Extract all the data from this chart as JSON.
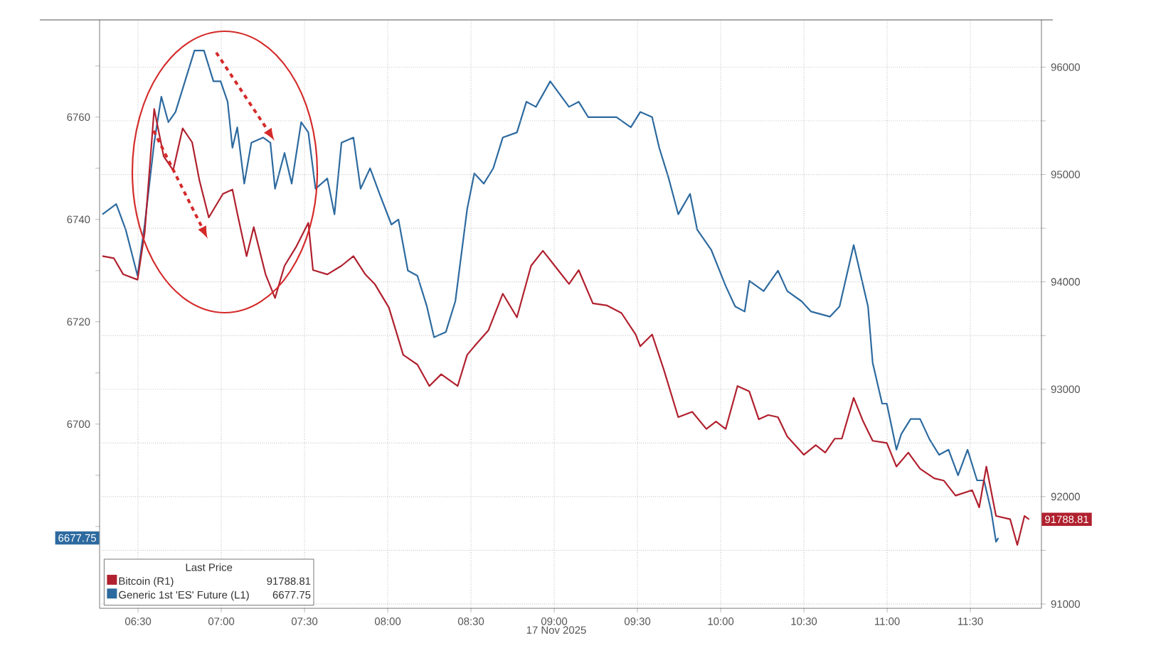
{
  "chart_data": {
    "type": "line",
    "xlabel": "17 Nov 2025",
    "legend_title": "Last Price",
    "annotations": [
      "91788.81",
      "6677.75",
      "6677.75"
    ],
    "xlim": [
      6.269,
      11.927
    ],
    "xticks": [
      {
        "value": 6.5,
        "label": "06:30"
      },
      {
        "value": 7,
        "label": "07:00"
      },
      {
        "value": 7.5,
        "label": "07:30"
      },
      {
        "value": 8,
        "label": "08:00"
      },
      {
        "value": 8.5,
        "label": "08:30"
      },
      {
        "value": 9,
        "label": "09:00"
      },
      {
        "value": 9.5,
        "label": "09:30"
      },
      {
        "value": 10,
        "label": "10:00"
      },
      {
        "value": 10.5,
        "label": "10:30"
      },
      {
        "value": 11,
        "label": "11:00"
      },
      {
        "value": 11.5,
        "label": "11:30"
      }
    ],
    "ylim": [
      6664,
      6779
    ],
    "yticks": [
      {
        "value": 6680,
        "label": null
      },
      {
        "value": 6690,
        "label": null
      },
      6700,
      {
        "value": 6710,
        "label": null
      },
      6720,
      {
        "value": 6730,
        "label": null
      },
      6740,
      {
        "value": 6750,
        "label": null
      },
      6760,
      {
        "value": 6770,
        "label": null
      }
    ],
    "y2lim": [
      90960,
      96440
    ],
    "y2ticks": [
      91000,
      {
        "value": 91500,
        "label": null
      },
      92000,
      {
        "value": 92500,
        "label": null
      },
      93000,
      {
        "value": 93500,
        "label": null
      },
      94000,
      {
        "value": 94500,
        "label": null
      },
      95000,
      {
        "value": 95500,
        "label": null
      },
      96000
    ],
    "grid": true,
    "legend": "bottom left",
    "marker": "none",
    "line_style": "solid",
    "series": [
      {
        "name": "Bitcoin (R1)",
        "color": "#b0202e",
        "axis": "y2",
        "x": [
          6.286,
          6.355,
          6.411,
          6.497,
          6.54,
          6.597,
          6.654,
          6.711,
          6.768,
          6.825,
          6.868,
          6.925,
          7.01,
          7.067,
          7.096,
          7.152,
          7.195,
          7.266,
          7.323,
          7.38,
          7.451,
          7.523,
          7.551,
          7.637,
          7.722,
          7.794,
          7.865,
          7.922,
          8.007,
          8.093,
          8.178,
          8.25,
          8.321,
          8.42,
          8.477,
          8.52,
          8.605,
          8.691,
          8.776,
          8.861,
          8.932,
          9.003,
          9.089,
          9.147,
          9.232,
          9.318,
          9.404,
          9.489,
          9.517,
          9.588,
          9.659,
          9.745,
          9.829,
          9.914,
          9.972,
          10.03,
          10.101,
          10.172,
          10.229,
          10.286,
          10.344,
          10.4,
          10.5,
          10.571,
          10.628,
          10.685,
          10.728,
          10.799,
          10.856,
          10.913,
          10.998,
          11.056,
          11.127,
          11.198,
          11.283,
          11.34,
          11.411,
          11.511,
          11.553,
          11.596,
          11.654,
          11.739,
          11.782,
          11.825,
          11.853
        ],
        "values": [
          94240,
          94220,
          94070,
          94020,
          94460,
          95610,
          95170,
          95040,
          95430,
          95300,
          94950,
          94600,
          94820,
          94860,
          94640,
          94240,
          94510,
          94070,
          93850,
          94150,
          94330,
          94550,
          94110,
          94070,
          94150,
          94240,
          94070,
          93980,
          93760,
          93320,
          93230,
          93030,
          93140,
          93030,
          93320,
          93400,
          93550,
          93890,
          93670,
          94150,
          94290,
          94150,
          93980,
          94110,
          93800,
          93780,
          93710,
          93510,
          93400,
          93510,
          93180,
          92740,
          92790,
          92630,
          92700,
          92630,
          93030,
          92980,
          92720,
          92760,
          92740,
          92560,
          92390,
          92480,
          92410,
          92540,
          92540,
          92920,
          92700,
          92520,
          92500,
          92280,
          92410,
          92260,
          92170,
          92150,
          92010,
          92060,
          91900,
          92280,
          91820,
          91790,
          91550,
          91820,
          91788.81
        ],
        "value_labels": [
          null,
          null,
          null,
          null,
          null,
          null,
          null,
          null,
          null,
          null,
          null,
          null,
          null,
          null,
          null,
          null,
          null,
          null,
          null,
          null,
          null,
          null,
          null,
          null,
          null,
          null,
          null,
          null,
          null,
          null,
          null,
          null,
          null,
          null,
          null,
          null,
          null,
          null,
          null,
          null,
          null,
          null,
          null,
          null,
          null,
          null,
          null,
          null,
          null,
          null,
          null,
          null,
          null,
          null,
          null,
          null,
          null,
          null,
          null,
          null,
          null,
          null,
          null,
          null,
          null,
          null,
          null,
          null,
          null,
          null,
          null,
          null,
          null,
          null,
          null,
          null,
          null,
          null,
          null,
          null,
          null,
          null,
          null,
          null,
          "91788.81"
        ]
      },
      {
        "name": "Generic 1st 'ES' Future (L1)",
        "color": "#2d6a9f",
        "axis": "y",
        "x": [
          6.286,
          6.369,
          6.426,
          6.497,
          6.54,
          6.597,
          6.64,
          6.682,
          6.725,
          6.782,
          6.839,
          6.896,
          6.953,
          6.996,
          7.038,
          7.067,
          7.096,
          7.138,
          7.181,
          7.252,
          7.295,
          7.323,
          7.38,
          7.423,
          7.48,
          7.523,
          7.566,
          7.637,
          7.68,
          7.722,
          7.794,
          7.837,
          7.894,
          7.951,
          8.022,
          8.064,
          8.121,
          8.178,
          8.235,
          8.278,
          8.349,
          8.406,
          8.477,
          8.52,
          8.577,
          8.634,
          8.691,
          8.776,
          8.833,
          8.89,
          8.976,
          9.089,
          9.147,
          9.204,
          9.289,
          9.374,
          9.46,
          9.517,
          9.588,
          9.631,
          9.688,
          9.745,
          9.816,
          9.859,
          9.944,
          10.03,
          10.087,
          10.144,
          10.172,
          10.258,
          10.344,
          10.4,
          10.486,
          10.543,
          10.657,
          10.714,
          10.799,
          10.842,
          10.885,
          10.913,
          10.97,
          10.998,
          11.056,
          11.084,
          11.141,
          11.198,
          11.255,
          11.312,
          11.369,
          11.426,
          11.483,
          11.54,
          11.582,
          11.625,
          11.654,
          11.668
        ],
        "values": [
          6741,
          6743,
          6738,
          6729,
          6739,
          6755,
          6764,
          6759,
          6761,
          6767,
          6773,
          6773,
          6767,
          6767,
          6763,
          6754,
          6758,
          6747,
          6755,
          6756,
          6755,
          6746,
          6753,
          6747,
          6759,
          6757,
          6746,
          6748,
          6741,
          6755,
          6756,
          6746,
          6750,
          6745,
          6739,
          6740,
          6730,
          6729,
          6723,
          6717,
          6718,
          6724,
          6742,
          6749,
          6747,
          6750,
          6756,
          6757,
          6763,
          6762,
          6767,
          6762,
          6763,
          6760,
          6760,
          6760,
          6758,
          6761,
          6760,
          6754,
          6748,
          6741,
          6745,
          6738,
          6734,
          6727,
          6723,
          6722,
          6728,
          6726,
          6730,
          6726,
          6724,
          6722,
          6721,
          6723,
          6735,
          6729,
          6723,
          6712,
          6704,
          6704,
          6695,
          6698,
          6701,
          6701,
          6697,
          6694,
          6695,
          6690,
          6695,
          6689,
          6689,
          6683,
          6677,
          6677.75
        ]
      }
    ]
  }
}
